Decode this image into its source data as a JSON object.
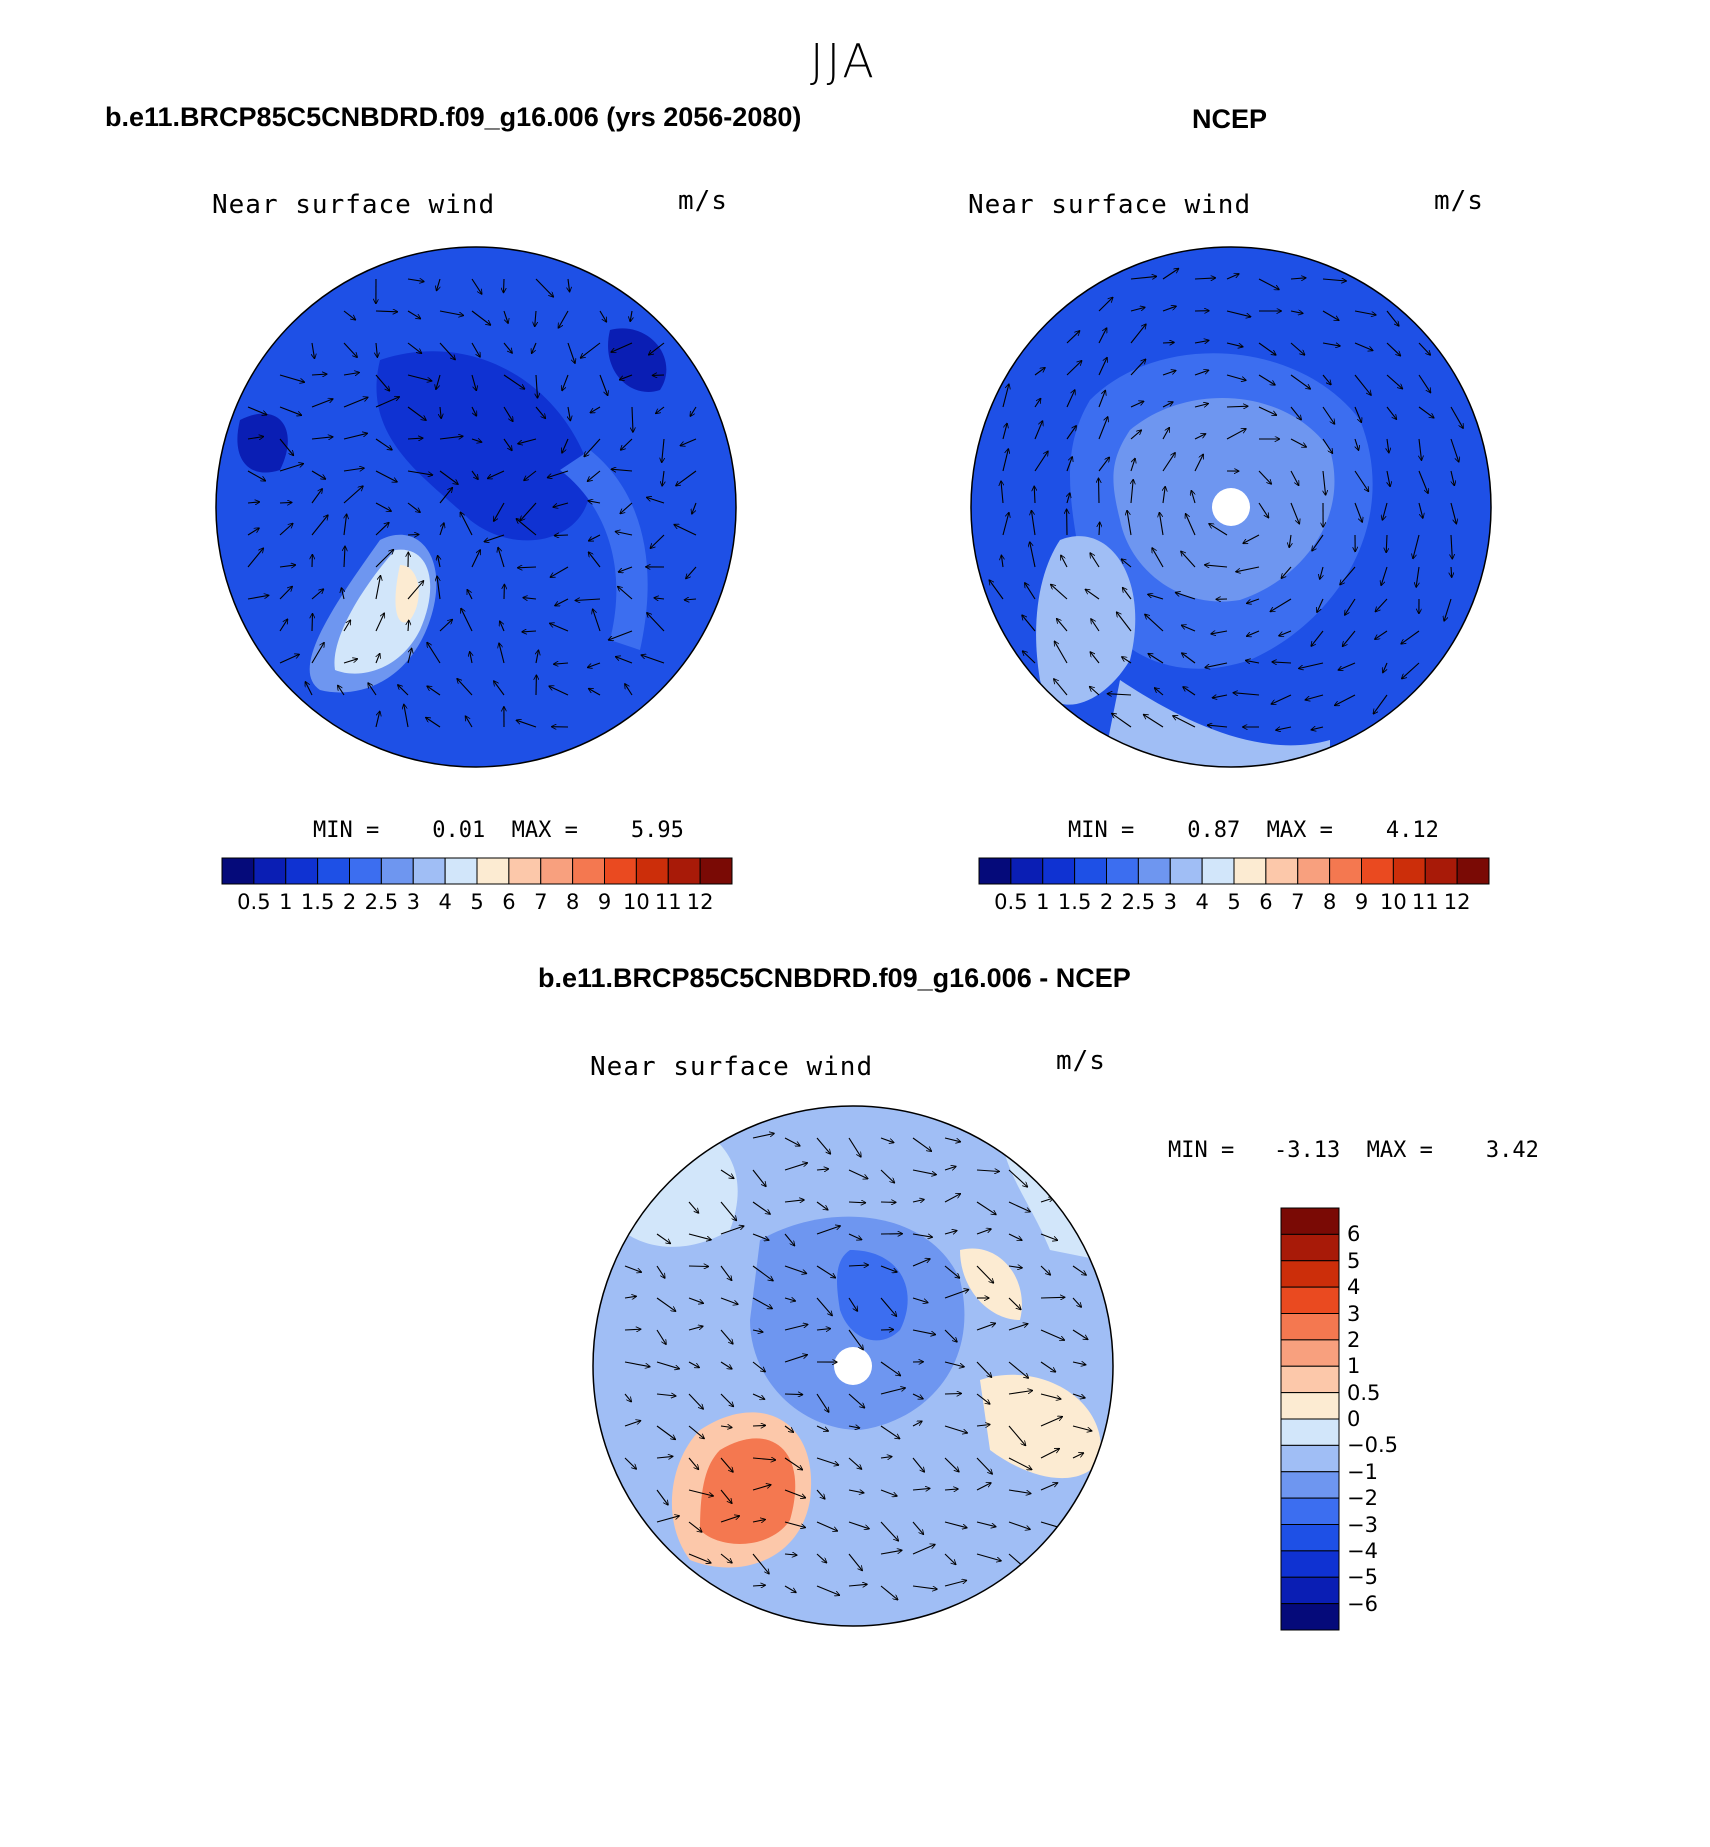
{
  "figure": {
    "title": "JJA"
  },
  "panels": [
    {
      "title": "b.e11.BRCP85C5CNBDRD.f09_g16.006 (yrs 2056-2080)",
      "subtitle": "Near surface wind",
      "units": "m/s",
      "stats": "MIN =    0.01  MAX =    5.95",
      "cbar_labels": [
        "0.5",
        "1",
        "1.5",
        "2",
        "2.5",
        "3",
        "4",
        "5",
        "6",
        "7",
        "8",
        "9",
        "10",
        "11",
        "12"
      ],
      "cbar_colors": [
        "#050a7a",
        "#0a1eb4",
        "#0f32d2",
        "#1e50e6",
        "#3c6ef0",
        "#6e96f0",
        "#a0bef5",
        "#d2e6fa",
        "#fcebd2",
        "#fcc8aa",
        "#f8a07e",
        "#f47850",
        "#ea4a20",
        "#cc2e0a",
        "#a81a08",
        "#7a0a05"
      ],
      "map_note": "Model wind speed with wind vectors over polar stereographic projection"
    },
    {
      "title": "NCEP",
      "subtitle": "Near surface wind",
      "units": "m/s",
      "stats": "MIN =    0.87  MAX =    4.12",
      "cbar_labels": [
        "0.5",
        "1",
        "1.5",
        "2",
        "2.5",
        "3",
        "4",
        "5",
        "6",
        "7",
        "8",
        "9",
        "10",
        "11",
        "12"
      ],
      "cbar_colors": [
        "#050a7a",
        "#0a1eb4",
        "#0f32d2",
        "#1e50e6",
        "#3c6ef0",
        "#6e96f0",
        "#a0bef5",
        "#d2e6fa",
        "#fcebd2",
        "#fcc8aa",
        "#f8a07e",
        "#f47850",
        "#ea4a20",
        "#cc2e0a",
        "#a81a08",
        "#7a0a05"
      ]
    },
    {
      "title": "b.e11.BRCP85C5CNBDRD.f09_g16.006 - NCEP",
      "subtitle": "Near surface wind",
      "units": "m/s",
      "stats": "MIN =   -3.13  MAX =    3.42",
      "cbar_labels": [
        "6",
        "5",
        "4",
        "3",
        "2",
        "1",
        "0.5",
        "0",
        "−0.5",
        "−1",
        "−2",
        "−3",
        "−4",
        "−5",
        "−6"
      ],
      "cbar_colors": [
        "#7a0a05",
        "#a81a08",
        "#cc2e0a",
        "#ea4a20",
        "#f47850",
        "#f8a07e",
        "#fcc8aa",
        "#fcebd2",
        "#d2e6fa",
        "#a0bef5",
        "#6e96f0",
        "#3c6ef0",
        "#1e50e6",
        "#0f32d2",
        "#0a1eb4",
        "#050a7a"
      ]
    }
  ]
}
